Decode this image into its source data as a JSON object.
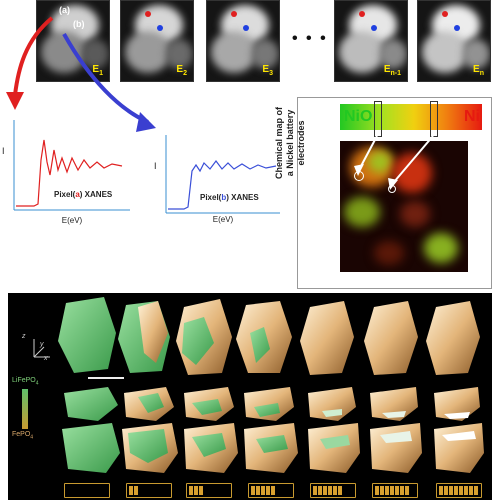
{
  "frames": {
    "labels": [
      {
        "base": "E",
        "sub": "1"
      },
      {
        "base": "E",
        "sub": "2"
      },
      {
        "base": "E",
        "sub": "3"
      },
      {
        "base": "E",
        "sub": "n-1"
      },
      {
        "base": "E",
        "sub": "n"
      }
    ],
    "pixel_a_marker": "(a)",
    "pixel_b_marker": "(b)",
    "ellipsis": "• • •"
  },
  "plots": {
    "a": {
      "ylabel": "I",
      "xlabel": "E(eV)",
      "cap_pre": "Pixel(",
      "cap_mark": "a",
      "cap_post": ") XANES",
      "color": "#e02020"
    },
    "b": {
      "ylabel": "I",
      "xlabel": "E(eV)",
      "cap_pre": "Pixel(",
      "cap_mark": "b",
      "cap_post": ") XANES",
      "color": "#3a4fd8"
    }
  },
  "chemical_map": {
    "left_label": "NiO",
    "right_label": "Ni",
    "left_color": "#22c822",
    "right_color": "#e61a10",
    "vertical_caption_line1": "Chemical map of",
    "vertical_caption_line2": "a Nickel battery electrodes"
  },
  "legend": {
    "top_label_main": "LiFePO",
    "top_label_sub": "4",
    "bottom_label_main": "FePO",
    "bottom_label_sub": "4"
  },
  "axes_labels": {
    "z": "z",
    "y": "y",
    "x": "x"
  },
  "batteries": {
    "fill_levels": [
      0,
      0.2,
      0.4,
      0.6,
      0.8,
      0.9,
      1.0
    ]
  },
  "colors": {
    "arrow_red": "#e02020",
    "arrow_blue": "#3a3fd0",
    "lifepo4": "#5fc06a",
    "fepo4": "#d9a86a"
  }
}
